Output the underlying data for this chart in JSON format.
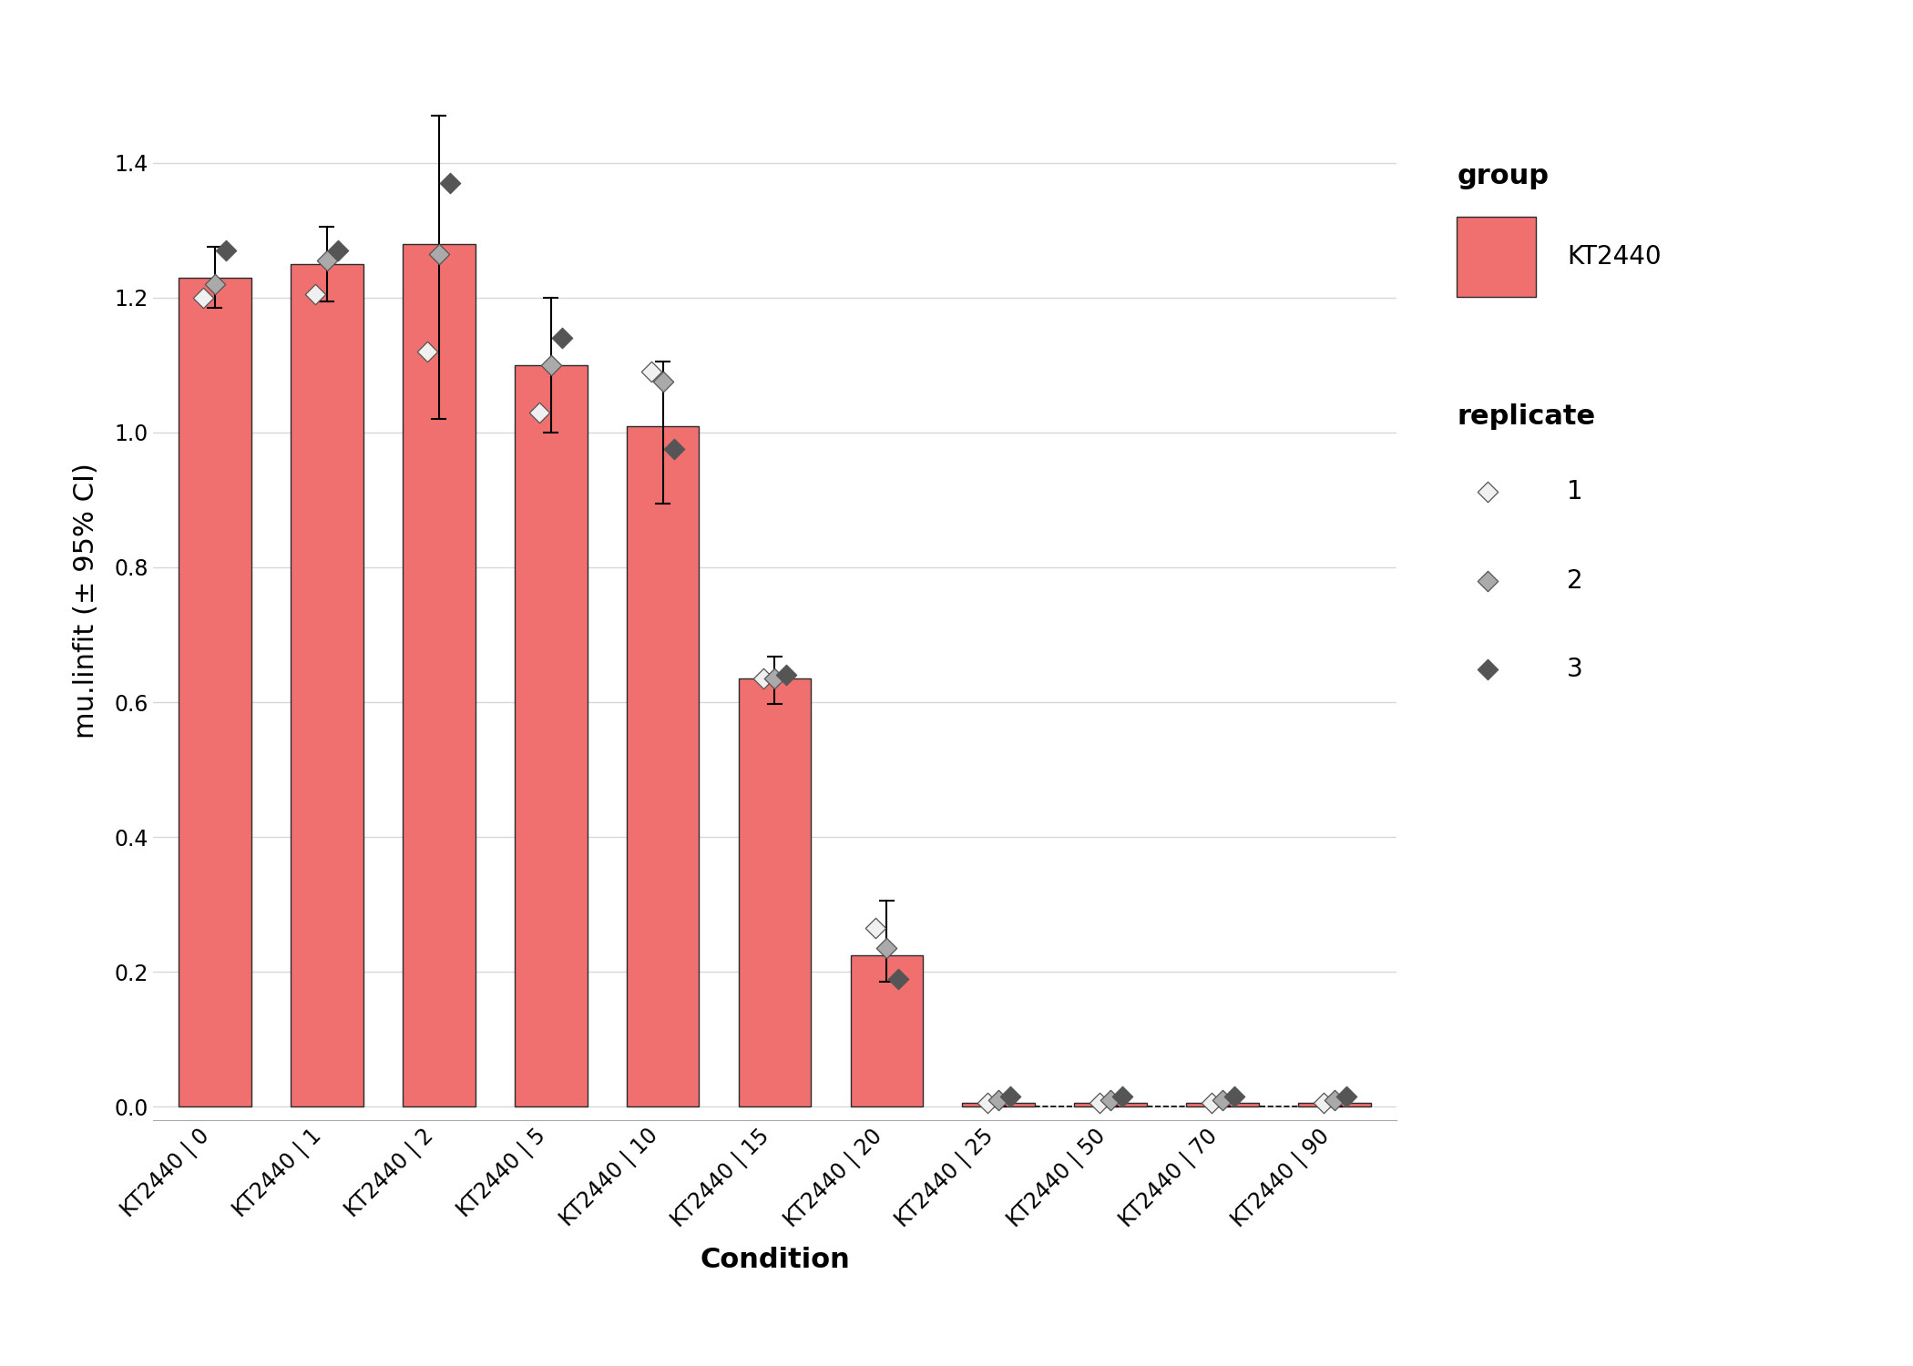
{
  "conditions": [
    "KT2440 | 0",
    "KT2440 | 1",
    "KT2440 | 2",
    "KT2440 | 5",
    "KT2440 | 10",
    "KT2440 | 15",
    "KT2440 | 20",
    "KT2440 | 25",
    "KT2440 | 50",
    "KT2440 | 70",
    "KT2440 | 90"
  ],
  "bar_means": [
    1.23,
    1.25,
    1.28,
    1.1,
    1.01,
    0.635,
    0.225,
    0.005,
    0.005,
    0.005,
    0.005
  ],
  "bar_ci_low": [
    1.185,
    1.195,
    1.02,
    1.0,
    0.895,
    0.598,
    0.185,
    0.0,
    0.0,
    0.0,
    0.0
  ],
  "bar_ci_high": [
    1.275,
    1.305,
    1.47,
    1.2,
    1.105,
    0.668,
    0.305,
    0.01,
    0.01,
    0.01,
    0.01
  ],
  "rep1_vals": [
    1.2,
    1.205,
    1.12,
    1.03,
    1.09,
    0.635,
    0.265,
    0.005,
    0.005,
    0.005,
    0.005
  ],
  "rep2_vals": [
    1.22,
    1.255,
    1.265,
    1.1,
    1.075,
    0.635,
    0.235,
    0.01,
    0.01,
    0.01,
    0.01
  ],
  "rep3_vals": [
    1.27,
    1.27,
    1.37,
    1.14,
    0.975,
    0.64,
    0.19,
    0.015,
    0.015,
    0.015,
    0.015
  ],
  "bar_color": "#F07070",
  "bar_edge_color": "#2b2b2b",
  "rep1_color": "#f0f0f0",
  "rep2_color": "#aaaaaa",
  "rep3_color": "#555555",
  "marker_edge_color": "#555555",
  "xlabel": "Condition",
  "ylabel": "mu.linfit (± 95% CI)",
  "ylim": [
    -0.02,
    1.52
  ],
  "yticks": [
    0.0,
    0.2,
    0.4,
    0.6,
    0.8,
    1.0,
    1.2,
    1.4
  ],
  "ytick_labels": [
    "0.0",
    "0.2",
    "0.4",
    "0.6",
    "0.8",
    "1.0",
    "1.2",
    "1.4"
  ],
  "legend_group_title": "group",
  "legend_group_label": "KT2440",
  "legend_rep_title": "replicate",
  "legend_rep_labels": [
    "1",
    "2",
    "3"
  ],
  "background_color": "#ffffff",
  "grid_color": "#d8d8d8",
  "axis_label_fontsize": 22,
  "tick_fontsize": 17,
  "legend_fontsize": 20,
  "legend_title_fontsize": 22
}
